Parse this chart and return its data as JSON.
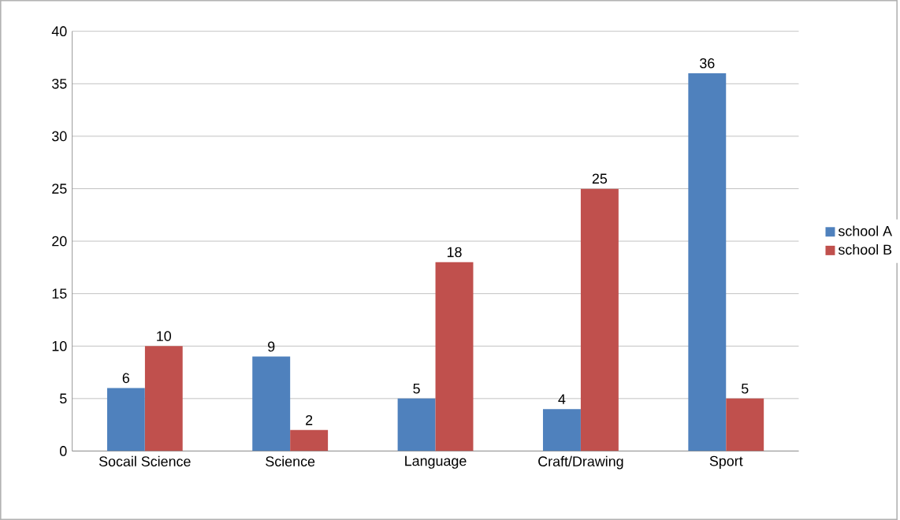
{
  "chart_data": {
    "type": "bar",
    "categories": [
      "Socail Science",
      "Science",
      "Language",
      "Craft/Drawing",
      "Sport"
    ],
    "series": [
      {
        "name": "school A",
        "color": "#4f81bd",
        "values": [
          6,
          9,
          5,
          4,
          36
        ]
      },
      {
        "name": "school B",
        "color": "#c0504d",
        "values": [
          10,
          2,
          18,
          25,
          5
        ]
      }
    ],
    "ylim": [
      0,
      40
    ],
    "yticks": [
      0,
      5,
      10,
      15,
      20,
      25,
      30,
      35,
      40
    ],
    "grid": "y",
    "legend": "right",
    "data_labels": true
  }
}
